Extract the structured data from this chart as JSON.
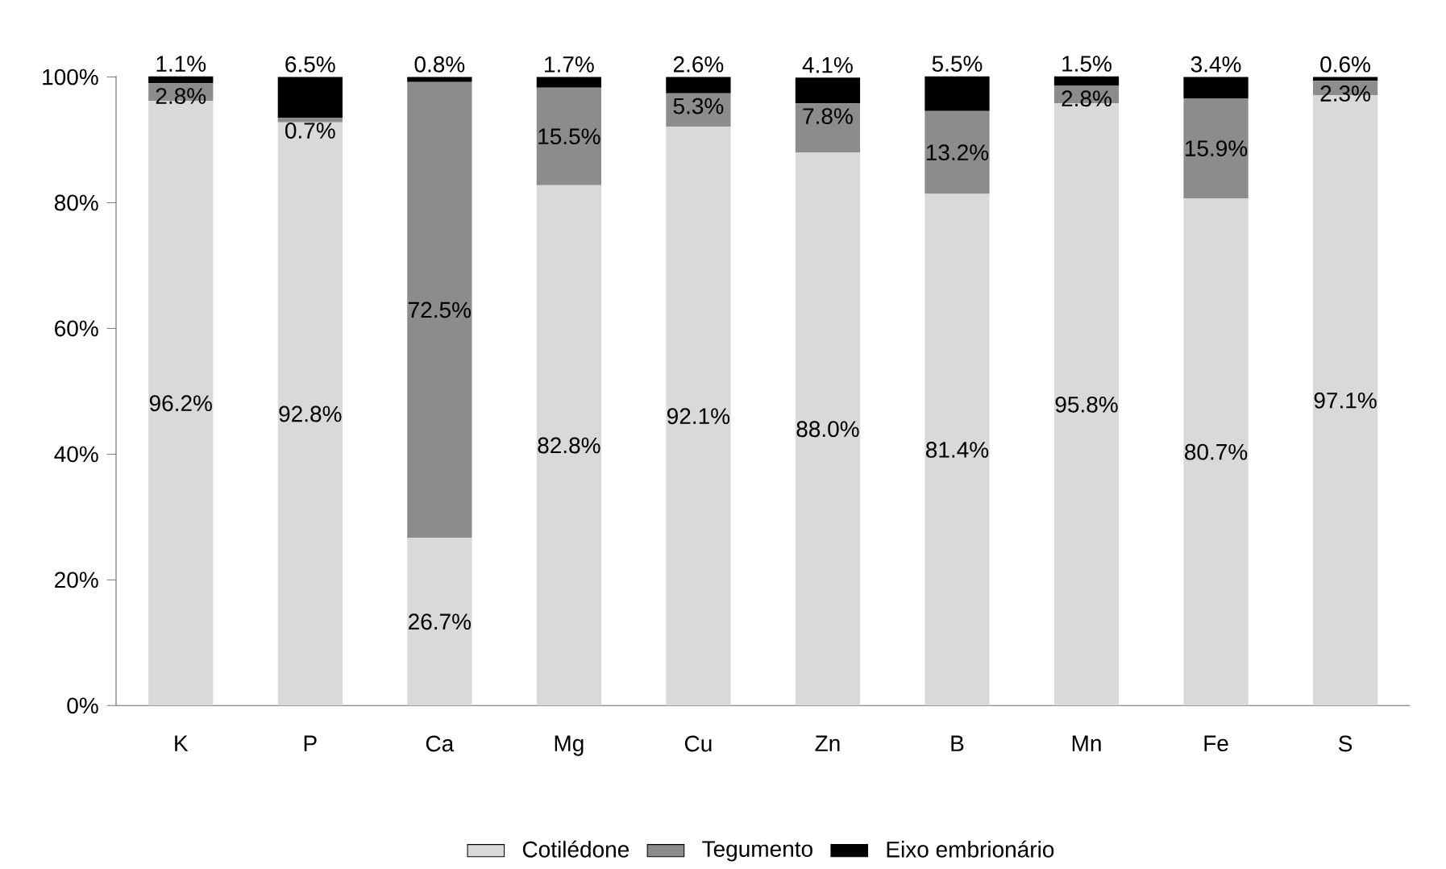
{
  "chart_data": {
    "type": "bar",
    "stacked": true,
    "categories": [
      "K",
      "P",
      "Ca",
      "Mg",
      "Cu",
      "Zn",
      "B",
      "Mn",
      "Fe",
      "S"
    ],
    "series": [
      {
        "name": "Cotilédone",
        "color": "#d9d9d9",
        "values": [
          96.2,
          92.8,
          26.7,
          82.8,
          92.1,
          88.0,
          81.4,
          95.8,
          80.7,
          97.1
        ],
        "value_labels": [
          "96.2%",
          "92.8%",
          "26.7%",
          "82.8%",
          "92.1%",
          "88.0%",
          "81.4%",
          "95.8%",
          "80.7%",
          "97.1%"
        ]
      },
      {
        "name": "Tegumento",
        "color": "#8c8c8c",
        "values": [
          2.8,
          0.7,
          72.5,
          15.5,
          5.3,
          7.8,
          13.2,
          2.8,
          15.9,
          2.3
        ],
        "value_labels": [
          "2.8%",
          "0.7%",
          "72.5%",
          "15.5%",
          "5.3%",
          "7.8%",
          "13.2%",
          "2.8%",
          "15.9%",
          "2.3%"
        ]
      },
      {
        "name": "Eixo embrionário",
        "color": "#000000",
        "values": [
          1.1,
          6.5,
          0.8,
          1.7,
          2.6,
          4.1,
          5.5,
          1.5,
          3.4,
          0.6
        ],
        "value_labels": [
          "1.1%",
          "6.5%",
          "0.8%",
          "1.7%",
          "2.6%",
          "4.1%",
          "5.5%",
          "1.5%",
          "3.4%",
          "0.6%"
        ]
      }
    ],
    "ylim": [
      0,
      100.2
    ],
    "yticks": [
      {
        "value": 0,
        "label": "0%"
      },
      {
        "value": 20,
        "label": "20%"
      },
      {
        "value": 40,
        "label": "40%"
      },
      {
        "value": 60,
        "label": "60%"
      },
      {
        "value": 80,
        "label": "80%"
      },
      {
        "value": 100,
        "label": "100%"
      }
    ],
    "grid": false,
    "legend": "bottom"
  }
}
